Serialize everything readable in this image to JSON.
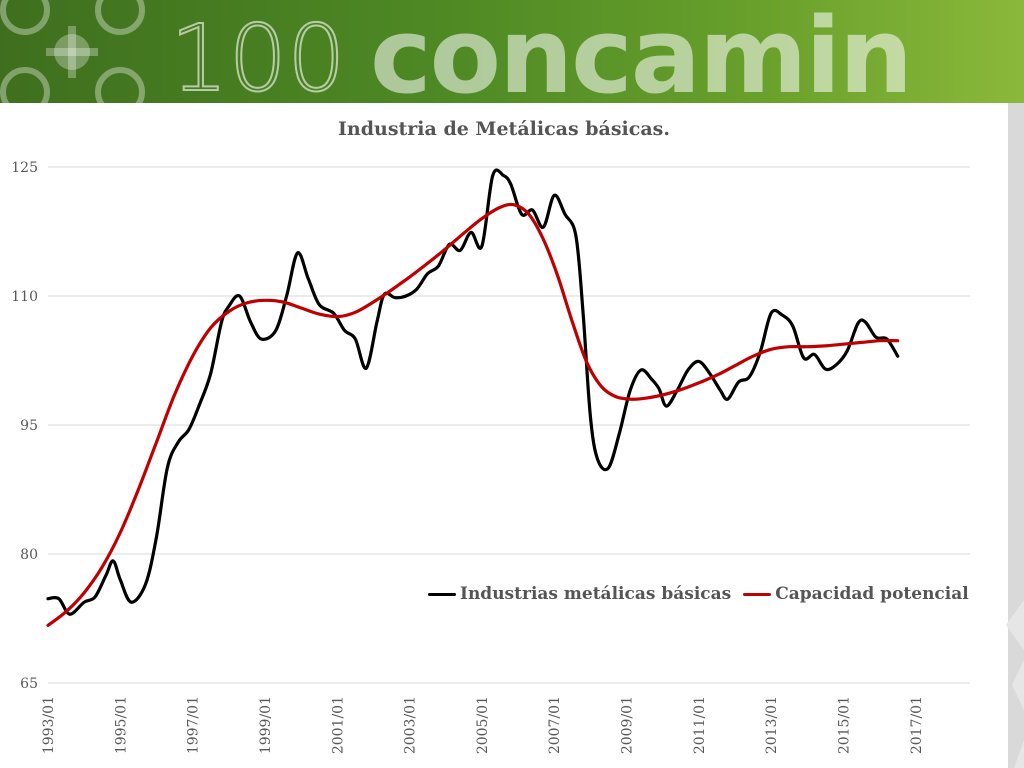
{
  "header": {
    "logo_number": "100",
    "logo_text": "concamin"
  },
  "colors": {
    "banner_dark": "#3f6f1e",
    "banner_light": "#8ab83a",
    "series_actual": "#000000",
    "series_potential": "#c00000",
    "grid": "#d9d9d9"
  },
  "chart_data": {
    "type": "line",
    "title": "Industria de Metálicas básicas.",
    "xlabel": "",
    "ylabel": "",
    "ylim": [
      65,
      125
    ],
    "yticks": [
      65,
      80,
      95,
      110,
      125
    ],
    "xlim": [
      1993.0,
      2018.5
    ],
    "x_tick_labels": [
      "1993/01",
      "1995/01",
      "1997/01",
      "1999/01",
      "2001/01",
      "2003/01",
      "2005/01",
      "2007/01",
      "2009/01",
      "2011/01",
      "2013/01",
      "2015/01",
      "2017/01"
    ],
    "grid": "horizontal",
    "legend_position": "bottom-right",
    "series": [
      {
        "name": "Industrias metálicas básicas",
        "color": "#000000",
        "points": [
          [
            1993.0,
            74.8
          ],
          [
            1993.3,
            74.8
          ],
          [
            1993.6,
            73.0
          ],
          [
            1994.0,
            74.4
          ],
          [
            1994.3,
            75.0
          ],
          [
            1994.6,
            77.5
          ],
          [
            1994.8,
            79.2
          ],
          [
            1995.0,
            77.0
          ],
          [
            1995.3,
            74.4
          ],
          [
            1995.7,
            76.5
          ],
          [
            1996.0,
            82.0
          ],
          [
            1996.3,
            90.0
          ],
          [
            1996.6,
            93.0
          ],
          [
            1996.9,
            94.5
          ],
          [
            1997.2,
            97.5
          ],
          [
            1997.5,
            101.0
          ],
          [
            1997.8,
            107.0
          ],
          [
            1998.0,
            108.8
          ],
          [
            1998.3,
            110.0
          ],
          [
            1998.6,
            107.0
          ],
          [
            1998.9,
            105.0
          ],
          [
            1999.3,
            106.0
          ],
          [
            1999.6,
            110.0
          ],
          [
            1999.9,
            115.0
          ],
          [
            2000.2,
            112.0
          ],
          [
            2000.5,
            109.0
          ],
          [
            2000.9,
            108.0
          ],
          [
            2001.2,
            106.0
          ],
          [
            2001.5,
            105.0
          ],
          [
            2001.8,
            101.6
          ],
          [
            2002.1,
            107.0
          ],
          [
            2002.3,
            110.2
          ],
          [
            2002.6,
            109.8
          ],
          [
            2002.9,
            110.0
          ],
          [
            2003.2,
            110.8
          ],
          [
            2003.5,
            112.6
          ],
          [
            2003.8,
            113.5
          ],
          [
            2004.1,
            116.0
          ],
          [
            2004.4,
            115.3
          ],
          [
            2004.7,
            117.4
          ],
          [
            2005.0,
            115.8
          ],
          [
            2005.3,
            124.0
          ],
          [
            2005.6,
            124.0
          ],
          [
            2005.8,
            123.0
          ],
          [
            2006.1,
            119.5
          ],
          [
            2006.4,
            120.0
          ],
          [
            2006.7,
            118.0
          ],
          [
            2007.0,
            121.7
          ],
          [
            2007.3,
            119.5
          ],
          [
            2007.6,
            117.0
          ],
          [
            2007.8,
            108.0
          ],
          [
            2008.0,
            96.0
          ],
          [
            2008.2,
            91.0
          ],
          [
            2008.5,
            90.0
          ],
          [
            2008.8,
            94.0
          ],
          [
            2009.1,
            99.0
          ],
          [
            2009.4,
            101.4
          ],
          [
            2009.7,
            100.3
          ],
          [
            2009.9,
            99.2
          ],
          [
            2010.1,
            97.2
          ],
          [
            2010.4,
            99.0
          ],
          [
            2010.7,
            101.4
          ],
          [
            2011.0,
            102.4
          ],
          [
            2011.3,
            101.0
          ],
          [
            2011.6,
            99.0
          ],
          [
            2011.8,
            98.0
          ],
          [
            2012.1,
            100.0
          ],
          [
            2012.4,
            100.6
          ],
          [
            2012.7,
            103.5
          ],
          [
            2013.0,
            108.0
          ],
          [
            2013.3,
            107.8
          ],
          [
            2013.6,
            106.5
          ],
          [
            2013.9,
            102.8
          ],
          [
            2014.2,
            103.2
          ],
          [
            2014.5,
            101.5
          ],
          [
            2014.8,
            102.0
          ],
          [
            2015.1,
            103.6
          ],
          [
            2015.4,
            106.8
          ],
          [
            2015.6,
            107.0
          ],
          [
            2015.9,
            105.2
          ],
          [
            2016.2,
            105.0
          ],
          [
            2016.5,
            103.0
          ]
        ]
      },
      {
        "name": "Capacidad potencial",
        "color": "#c00000",
        "points": [
          [
            1993.0,
            71.7
          ],
          [
            1993.5,
            73.3
          ],
          [
            1994.0,
            75.5
          ],
          [
            1994.5,
            78.5
          ],
          [
            1995.0,
            82.5
          ],
          [
            1995.5,
            87.5
          ],
          [
            1996.0,
            93.0
          ],
          [
            1996.5,
            98.5
          ],
          [
            1997.0,
            103.0
          ],
          [
            1997.5,
            106.3
          ],
          [
            1998.0,
            108.2
          ],
          [
            1998.5,
            109.2
          ],
          [
            1999.0,
            109.5
          ],
          [
            1999.5,
            109.3
          ],
          [
            2000.0,
            108.6
          ],
          [
            2000.5,
            107.9
          ],
          [
            2001.0,
            107.6
          ],
          [
            2001.5,
            108.1
          ],
          [
            2002.0,
            109.3
          ],
          [
            2002.5,
            110.7
          ],
          [
            2003.0,
            112.2
          ],
          [
            2003.5,
            113.8
          ],
          [
            2004.0,
            115.5
          ],
          [
            2004.5,
            117.3
          ],
          [
            2005.0,
            119.0
          ],
          [
            2005.5,
            120.3
          ],
          [
            2005.9,
            120.6
          ],
          [
            2006.3,
            119.5
          ],
          [
            2006.7,
            116.6
          ],
          [
            2007.1,
            112.3
          ],
          [
            2007.5,
            107.0
          ],
          [
            2007.9,
            102.3
          ],
          [
            2008.3,
            99.5
          ],
          [
            2008.7,
            98.3
          ],
          [
            2009.1,
            98.0
          ],
          [
            2009.5,
            98.1
          ],
          [
            2010.0,
            98.5
          ],
          [
            2010.5,
            99.1
          ],
          [
            2011.0,
            99.9
          ],
          [
            2011.5,
            100.8
          ],
          [
            2012.0,
            101.9
          ],
          [
            2012.5,
            103.0
          ],
          [
            2013.0,
            103.8
          ],
          [
            2013.5,
            104.1
          ],
          [
            2014.0,
            104.1
          ],
          [
            2014.5,
            104.2
          ],
          [
            2015.0,
            104.4
          ],
          [
            2015.5,
            104.6
          ],
          [
            2016.0,
            104.8
          ],
          [
            2016.5,
            104.8
          ]
        ]
      }
    ]
  }
}
